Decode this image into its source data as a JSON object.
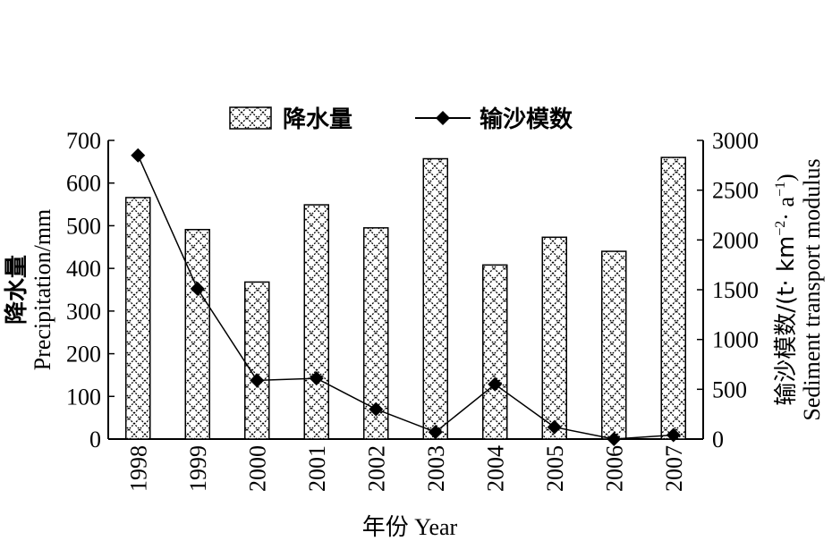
{
  "chart_data": {
    "type": "bar",
    "categories": [
      "1998",
      "1999",
      "2000",
      "2001",
      "2002",
      "2003",
      "2004",
      "2005",
      "2006",
      "2007"
    ],
    "series": [
      {
        "name": "降水量",
        "kind": "bar",
        "axis": "left",
        "values": [
          566,
          491,
          368,
          549,
          495,
          657,
          408,
          473,
          440,
          660
        ]
      },
      {
        "name": "输沙模数",
        "kind": "line",
        "axis": "right",
        "values": [
          2850,
          1510,
          590,
          610,
          300,
          70,
          550,
          120,
          0,
          40
        ]
      }
    ],
    "xlabel": "年份 Year",
    "ylabel_left_cn": "降水量",
    "ylabel_left_en": "Precipitation/mm",
    "ylabel_right_cn": "输沙模数/(t· km",
    "ylabel_right_sup1": "−2",
    "ylabel_right_mid": "· a",
    "ylabel_right_sup2": "−1",
    "ylabel_right_end": ")",
    "ylabel_right_en": "Sediment transport modulus",
    "ylim_left": [
      0,
      700
    ],
    "ylim_right": [
      0,
      3000
    ],
    "yticks_left": [
      "0",
      "100",
      "200",
      "300",
      "400",
      "500",
      "600",
      "700"
    ],
    "yticks_right": [
      "0",
      "500",
      "1000",
      "1500",
      "2000",
      "2500",
      "3000"
    ],
    "grid": false,
    "legend_position": "top-center",
    "bar_pattern": "crosshatch",
    "marker": "diamond",
    "colors": {
      "bar_fill": "#ffffff",
      "pattern": "#000000",
      "line": "#000000"
    }
  }
}
